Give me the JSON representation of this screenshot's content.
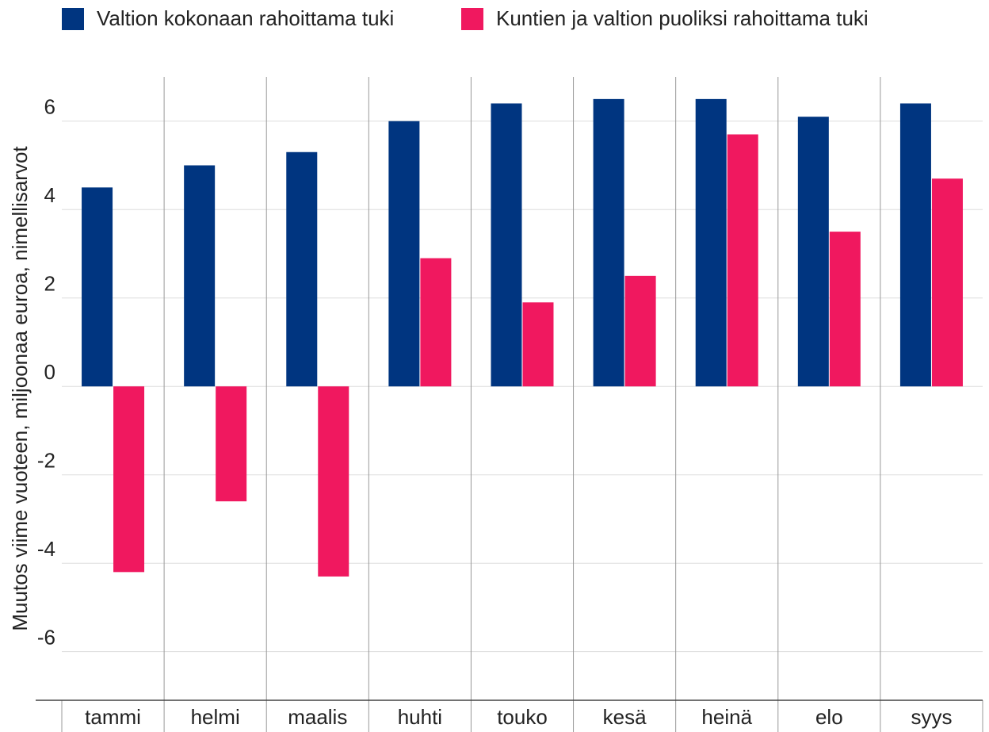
{
  "chart_data": {
    "type": "bar",
    "ylabel": "Muutos viime vuoteen, miljoonaa euroa, nimellisarvot",
    "categories": [
      "tammi",
      "helmi",
      "maalis",
      "huhti",
      "touko",
      "kesä",
      "heinä",
      "elo",
      "syys"
    ],
    "series": [
      {
        "name": "Valtion kokonaan rahoittama tuki",
        "color": "#003580",
        "values": [
          4.5,
          5.0,
          5.3,
          6.0,
          6.4,
          6.5,
          6.5,
          6.1,
          6.4
        ]
      },
      {
        "name": "Kuntien ja valtion puoliksi rahoittama tuki",
        "color": "#f0185f",
        "values": [
          -4.2,
          -2.6,
          -4.3,
          2.9,
          1.9,
          2.5,
          5.7,
          3.5,
          4.7
        ]
      }
    ],
    "ylim": [
      -7.1,
      7
    ],
    "yticks": [
      -6,
      -4,
      -2,
      0,
      2,
      4,
      6
    ],
    "grid": true,
    "legend": "top"
  }
}
